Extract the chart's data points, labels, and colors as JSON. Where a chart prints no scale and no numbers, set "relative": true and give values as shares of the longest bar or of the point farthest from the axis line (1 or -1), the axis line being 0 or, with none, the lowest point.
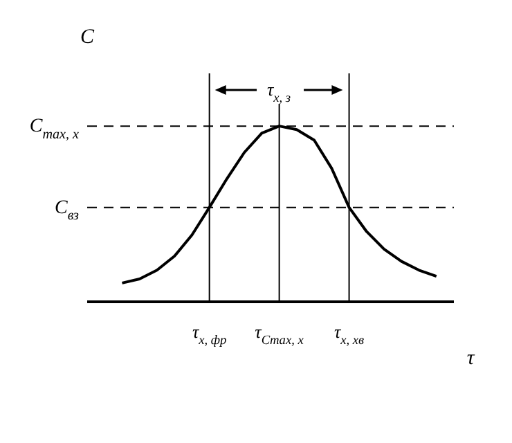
{
  "chart_data": {
    "type": "line",
    "relative": true,
    "ylabel": "C",
    "xlabel": "τ",
    "marker": "none",
    "line_style": "solid",
    "categories": [
      null,
      null,
      null,
      null,
      null,
      null,
      null,
      "τ$_{x, фр}$",
      null,
      null,
      null,
      "τ$_{C}$$_{max, x}$",
      null,
      null,
      null,
      "τ$_{x, хв}$",
      null,
      null,
      null,
      null,
      null,
      null
    ],
    "series": [
      {
        "color": "#000000",
        "values": [
          null,
          null,
          0.107,
          0.13,
          0.18,
          0.26,
          0.38,
          0.537,
          0.7,
          0.85,
          0.96,
          1,
          0.98,
          0.92,
          0.76,
          0.537,
          0.4,
          0.3,
          0.23,
          0.18,
          0.145,
          null
        ]
      }
    ],
    "ref_lines": [
      {
        "axis": "x",
        "value": "τ$_{x, фр}$",
        "color": "#000000",
        "line_style": "solid"
      },
      {
        "axis": "x",
        "value": "τ$_{C}$$_{max, x}$",
        "color": "#000000",
        "line_style": "solid"
      },
      {
        "axis": "x",
        "value": "τ$_{x, хв}$",
        "color": "#000000",
        "line_style": "solid"
      },
      {
        "axis": "y",
        "value": 1,
        "label": "C$_{max, x}$",
        "color": "#000000",
        "line_style": "dashed"
      },
      {
        "axis": "y",
        "value": 0.537,
        "label": "C$_{вз}$",
        "color": "#000000",
        "line_style": "dashed"
      }
    ],
    "annotations": [
      "τ$_{x, з}$"
    ]
  }
}
